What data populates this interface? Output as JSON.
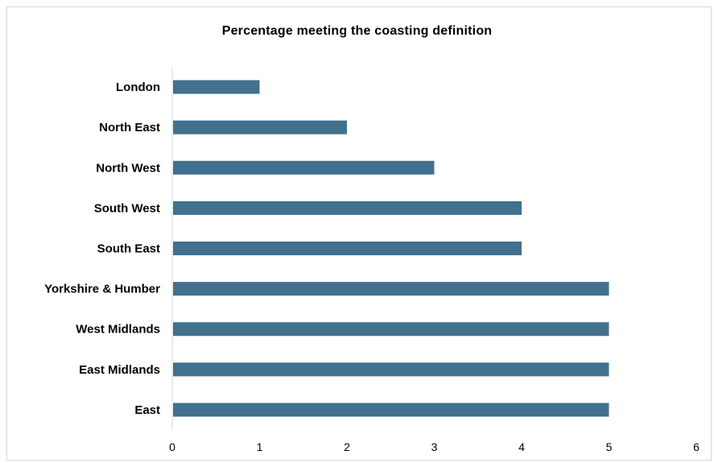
{
  "chart_data": {
    "type": "bar",
    "orientation": "horizontal",
    "title": "Percentage meeting the coasting definition",
    "categories": [
      "London",
      "North East",
      "North West",
      "South West",
      "South East",
      "Yorkshire & Humber",
      "West Midlands",
      "East Midlands",
      "East"
    ],
    "values": [
      1,
      2,
      3,
      4,
      4,
      5,
      5,
      5,
      5
    ],
    "xlabel": "",
    "ylabel": "",
    "xlim": [
      0,
      6
    ],
    "xticks": [
      "0",
      "1",
      "2",
      "3",
      "4",
      "5",
      "6"
    ],
    "grid": false,
    "legend": "none",
    "colors": {
      "bar": "#41718f",
      "axis": "#d9d9d9"
    }
  }
}
